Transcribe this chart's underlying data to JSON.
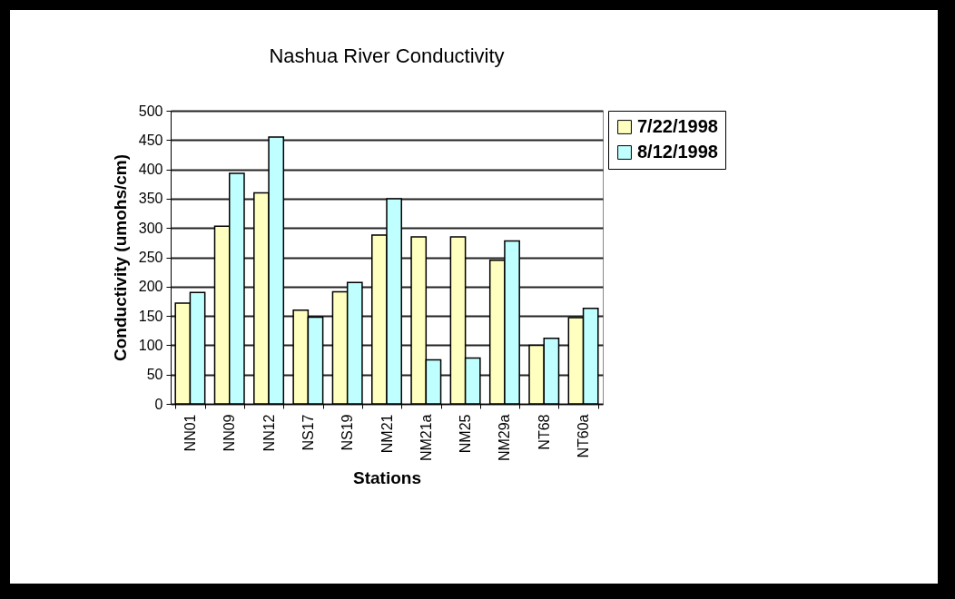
{
  "chart_data": {
    "type": "bar",
    "title": "Nashua River Conductivity",
    "xlabel": "Stations",
    "ylabel": "Conductivity (umohs/cm)",
    "categories": [
      "NN01",
      "NN09",
      "NN12",
      "NS17",
      "NS19",
      "NM21",
      "NM21a",
      "NM25",
      "NM29a",
      "NT68",
      "NT60a"
    ],
    "series": [
      {
        "name": "7/22/1998",
        "color": "#ffffc0",
        "values": [
          172,
          303,
          360,
          160,
          191,
          288,
          285,
          285,
          245,
          100,
          147
        ]
      },
      {
        "name": "8/12/1998",
        "color": "#c0ffff",
        "values": [
          190,
          393,
          455,
          148,
          207,
          350,
          75,
          78,
          278,
          112,
          163
        ]
      }
    ],
    "ylim": [
      0,
      500
    ],
    "yticks": [
      0,
      50,
      100,
      150,
      200,
      250,
      300,
      350,
      400,
      450,
      500
    ],
    "grid": "y",
    "legend": "right"
  }
}
